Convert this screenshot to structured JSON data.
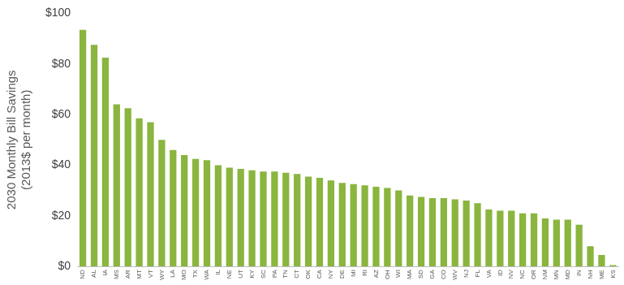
{
  "chart_data": {
    "type": "bar",
    "ylabel": [
      "2030 Monthly Bill Savings",
      "(2013$ per month)"
    ],
    "categories": [
      "ND",
      "AL",
      "IA",
      "MS",
      "AR",
      "MT",
      "VT",
      "WY",
      "LA",
      "MO",
      "TX",
      "WA",
      "IL",
      "NE",
      "UT",
      "KY",
      "SC",
      "PA",
      "TN",
      "CT",
      "OK",
      "CA",
      "NY",
      "DE",
      "MI",
      "RI",
      "AZ",
      "OH",
      "WI",
      "MA",
      "SD",
      "GA",
      "CO",
      "WV",
      "NJ",
      "FL",
      "VA",
      "ID",
      "NV",
      "NC",
      "OR",
      "NM",
      "MN",
      "MD",
      "IN",
      "NH",
      "ME",
      "KS"
    ],
    "values": [
      93.5,
      87.5,
      82.5,
      64,
      62.5,
      58.5,
      57,
      50,
      46,
      44,
      42.5,
      42,
      40,
      39,
      38.5,
      38,
      37.5,
      37.5,
      37,
      36.5,
      35.5,
      35,
      34,
      33,
      32.5,
      32,
      31.5,
      31,
      30,
      28,
      27.5,
      27,
      27,
      26.5,
      26,
      25,
      22.5,
      22,
      22,
      21,
      21,
      19,
      18.5,
      18.5,
      16.5,
      8,
      4.5,
      0.5
    ],
    "color": "#8ab53e",
    "ylim": [
      0,
      100
    ],
    "yticks": [
      {
        "value": 0,
        "label": "$0"
      },
      {
        "value": 20,
        "label": "$20"
      },
      {
        "value": 40,
        "label": "$40"
      },
      {
        "value": 60,
        "label": "$60"
      },
      {
        "value": 80,
        "label": "$80"
      },
      {
        "value": 100,
        "label": "$100"
      }
    ],
    "grid": false
  }
}
